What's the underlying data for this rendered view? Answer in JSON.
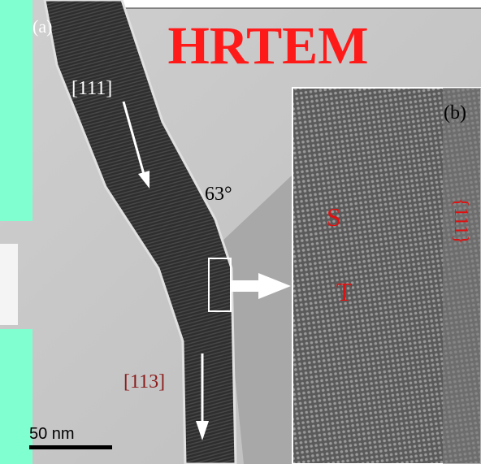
{
  "panel_a": {
    "label": "(a)",
    "title": "HRTEM",
    "labels": [
      "[111]",
      "63°",
      "[113]"
    ],
    "scale_bar": "50 nm"
  },
  "panel_b": {
    "label": "(b)",
    "labels": [
      "S",
      "T",
      "{111}"
    ]
  }
}
